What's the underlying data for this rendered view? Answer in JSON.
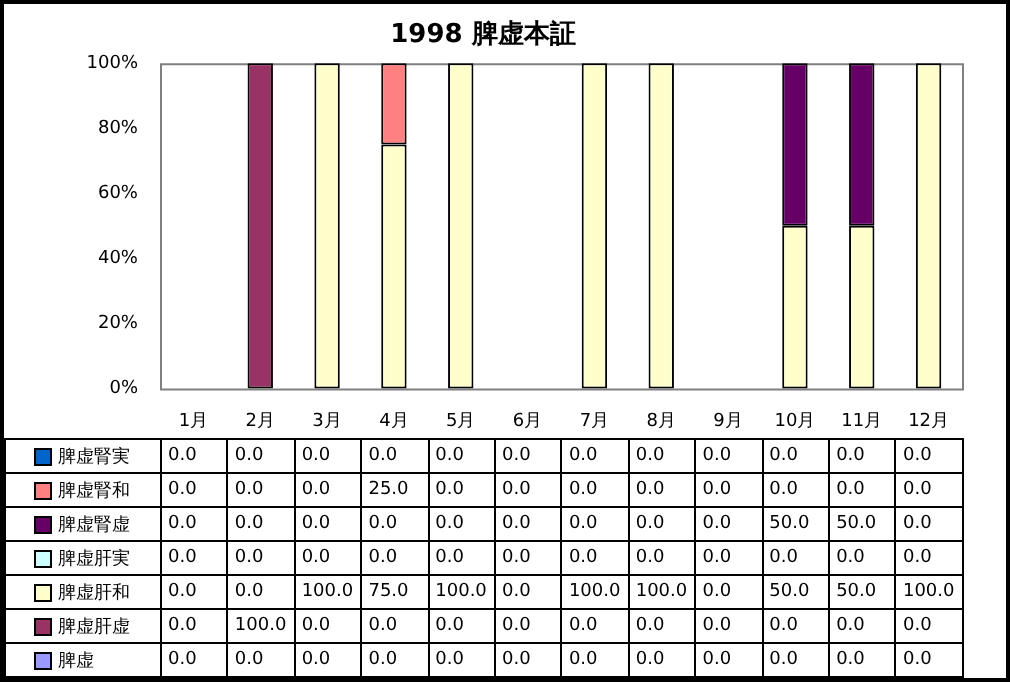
{
  "chart_data": {
    "type": "bar",
    "title": "1998 脾虚本証",
    "stacked": true,
    "legend": "bottom",
    "categories": [
      "1月",
      "2月",
      "3月",
      "4月",
      "5月",
      "6月",
      "7月",
      "8月",
      "9月",
      "10月",
      "11月",
      "12月"
    ],
    "ylim": [
      0,
      100
    ],
    "yticks": [
      {
        "value": 0,
        "label": "0%"
      },
      {
        "value": 20,
        "label": "20%"
      },
      {
        "value": 40,
        "label": "40%"
      },
      {
        "value": 60,
        "label": "60%"
      },
      {
        "value": 80,
        "label": "80%"
      },
      {
        "value": 100,
        "label": "100%"
      }
    ],
    "series": [
      {
        "name": "脾虚",
        "color": "#9999ff",
        "values": [
          0,
          0,
          0,
          0,
          0,
          0,
          0,
          0,
          0,
          0,
          0,
          0
        ],
        "value_labels": [
          "0.0",
          "0.0",
          "0.0",
          "0.0",
          "0.0",
          "0.0",
          "0.0",
          "0.0",
          "0.0",
          "0.0",
          "0.0",
          "0.0"
        ]
      },
      {
        "name": "脾虚肝虚",
        "color": "#993366",
        "values": [
          0,
          100,
          0,
          0,
          0,
          0,
          0,
          0,
          0,
          0,
          0,
          0
        ],
        "value_labels": [
          "0.0",
          "100.0",
          "0.0",
          "0.0",
          "0.0",
          "0.0",
          "0.0",
          "0.0",
          "0.0",
          "0.0",
          "0.0",
          "0.0"
        ]
      },
      {
        "name": "脾虚肝和",
        "color": "#ffffcc",
        "values": [
          0,
          0,
          100,
          75,
          100,
          0,
          100,
          100,
          0,
          50,
          50,
          100
        ],
        "value_labels": [
          "0.0",
          "0.0",
          "100.0",
          "75.0",
          "100.0",
          "0.0",
          "100.0",
          "100.0",
          "0.0",
          "50.0",
          "50.0",
          "100.0"
        ]
      },
      {
        "name": "脾虚肝実",
        "color": "#ccffff",
        "values": [
          0,
          0,
          0,
          0,
          0,
          0,
          0,
          0,
          0,
          0,
          0,
          0
        ],
        "value_labels": [
          "0.0",
          "0.0",
          "0.0",
          "0.0",
          "0.0",
          "0.0",
          "0.0",
          "0.0",
          "0.0",
          "0.0",
          "0.0",
          "0.0"
        ]
      },
      {
        "name": "脾虚腎虚",
        "color": "#660066",
        "values": [
          0,
          0,
          0,
          0,
          0,
          0,
          0,
          0,
          0,
          50,
          50,
          0
        ],
        "value_labels": [
          "0.0",
          "0.0",
          "0.0",
          "0.0",
          "0.0",
          "0.0",
          "0.0",
          "0.0",
          "0.0",
          "50.0",
          "50.0",
          "0.0"
        ]
      },
      {
        "name": "脾虚腎和",
        "color": "#ff8080",
        "values": [
          0,
          0,
          0,
          25,
          0,
          0,
          0,
          0,
          0,
          0,
          0,
          0
        ],
        "value_labels": [
          "0.0",
          "0.0",
          "0.0",
          "25.0",
          "0.0",
          "0.0",
          "0.0",
          "0.0",
          "0.0",
          "0.0",
          "0.0",
          "0.0"
        ]
      },
      {
        "name": "脾虚腎実",
        "color": "#0066cc",
        "values": [
          0,
          0,
          0,
          0,
          0,
          0,
          0,
          0,
          0,
          0,
          0,
          0
        ],
        "value_labels": [
          "0.0",
          "0.0",
          "0.0",
          "0.0",
          "0.0",
          "0.0",
          "0.0",
          "0.0",
          "0.0",
          "0.0",
          "0.0",
          "0.0"
        ]
      }
    ]
  }
}
